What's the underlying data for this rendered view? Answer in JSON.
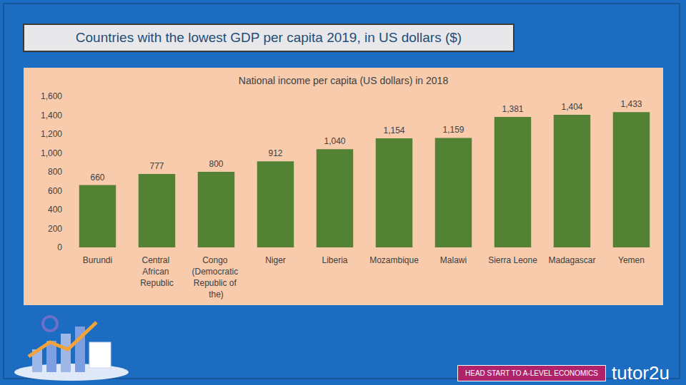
{
  "header": {
    "title": "Countries with the lowest GDP per capita 2019, in US dollars ($)"
  },
  "chart_data": {
    "type": "bar",
    "title": "National income per capita (US dollars) in 2018",
    "categories": [
      "Burundi",
      "Central African Republic",
      "Congo (Democratic Republic of the)",
      "Niger",
      "Liberia",
      "Mozambique",
      "Malawi",
      "Sierra Leone",
      "Madagascar",
      "Yemen"
    ],
    "values": [
      660,
      777,
      800,
      912,
      1040,
      1154,
      1159,
      1381,
      1404,
      1433
    ],
    "value_labels": [
      "660",
      "777",
      "800",
      "912",
      "1,040",
      "1,154",
      "1,159",
      "1,381",
      "1,404",
      "1,433"
    ],
    "color": "#548235",
    "ylim": [
      0,
      1600
    ],
    "yticks": [
      0,
      200,
      400,
      600,
      800,
      {
        "value": 1000,
        "label": "1,000"
      },
      {
        "value": 1200,
        "label": "1,200"
      },
      {
        "value": 1400,
        "label": "1,400"
      },
      {
        "value": 1600,
        "label": "1,600"
      }
    ],
    "grid": false,
    "data_labels": true
  },
  "footer": {
    "banner": "HEAD START TO A-LEVEL ECONOMICS",
    "brand": "tutor2u"
  }
}
